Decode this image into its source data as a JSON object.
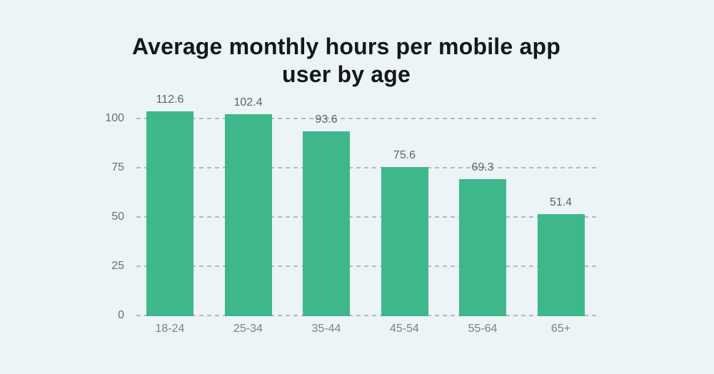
{
  "page": {
    "background_color": "#ecf4f8"
  },
  "chart_data": {
    "type": "bar",
    "title": "Average monthly hours per mobile app user by age",
    "title_lines": [
      "Average monthly hours per mobile app",
      "user by age"
    ],
    "categories": [
      "18-24",
      "25-34",
      "35-44",
      "45-54",
      "55-64",
      "65+"
    ],
    "values": [
      112.6,
      102.4,
      93.6,
      75.6,
      69.3,
      51.4
    ],
    "value_labels": [
      "112.6",
      "102.4",
      "93.6",
      "75.6",
      "69.3",
      "51.4"
    ],
    "y_ticks": [
      0,
      25,
      50,
      75,
      100
    ],
    "ylim": [
      0,
      103.7
    ],
    "xlabel": "",
    "ylabel": "",
    "legend": "none",
    "grid": "horizontal-dashed",
    "bar_clipped_at_top": "18-24",
    "colors": {
      "bar": "#3eb88a",
      "title": "#14181b",
      "value_label": "#5d6368",
      "y_tick_label": "#6a7076",
      "x_axis_label": "#7b8289",
      "gridline": "#b4babd"
    }
  }
}
